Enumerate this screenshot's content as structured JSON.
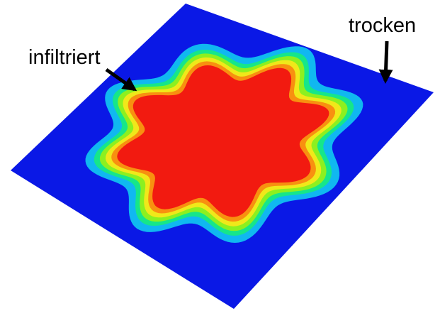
{
  "annotations": {
    "left": "infiltriert",
    "right": "trocken"
  }
}
